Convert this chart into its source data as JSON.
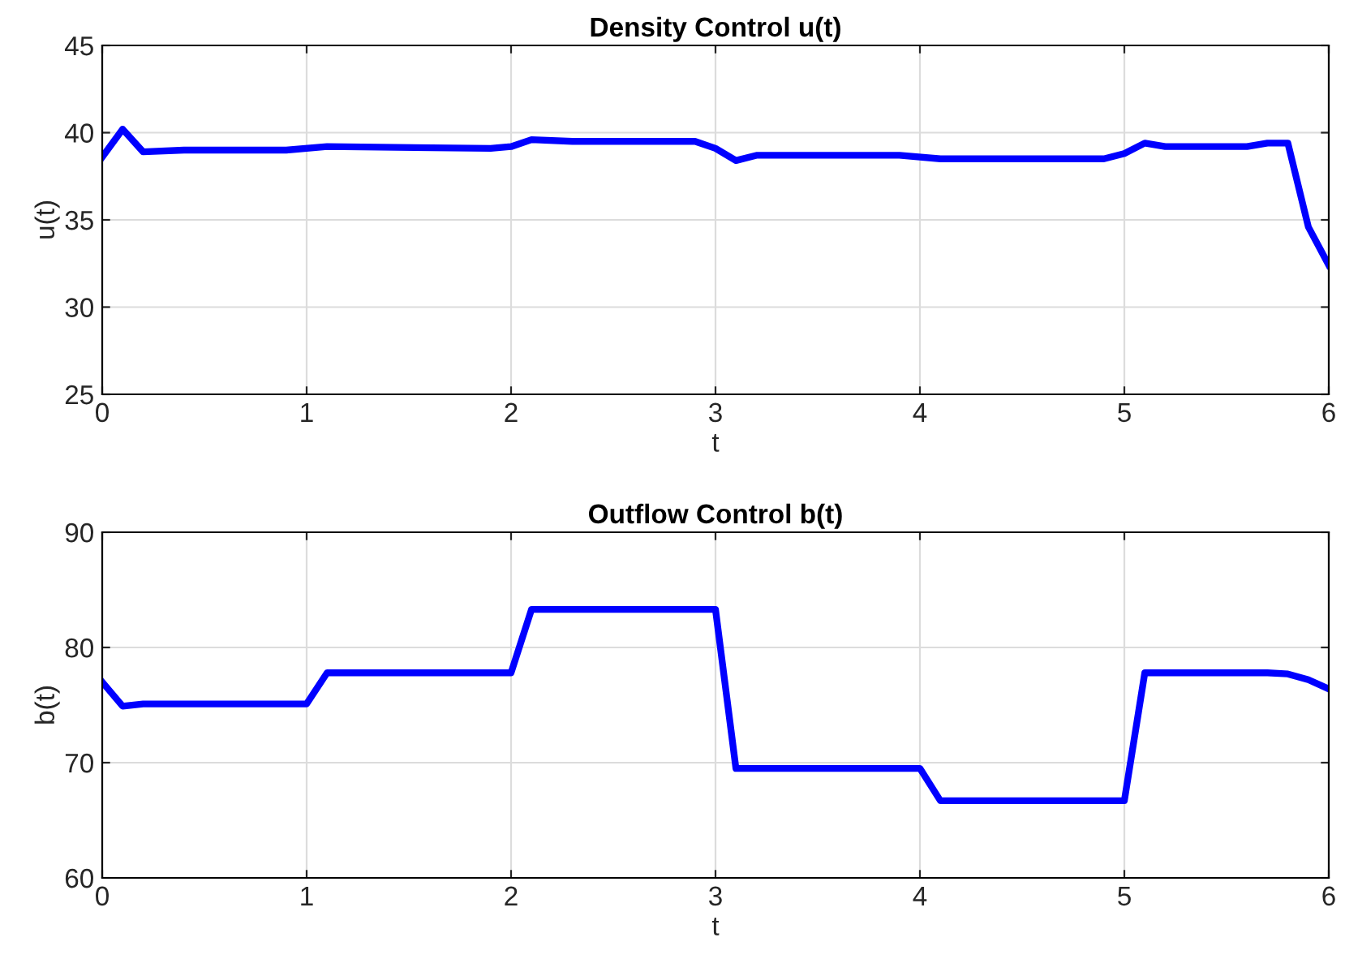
{
  "chart_data": [
    {
      "type": "line",
      "title": "Density Control u(t)",
      "xlabel": "t",
      "ylabel": "u(t)",
      "xlim": [
        0,
        6
      ],
      "xticks": [
        0,
        1,
        2,
        3,
        4,
        5,
        6
      ],
      "ylim": [
        25,
        45
      ],
      "yticks": [
        25,
        30,
        35,
        40,
        45
      ],
      "grid": true,
      "legend": false,
      "series": [
        {
          "color": "#0000ff",
          "x": [
            0,
            0.1,
            0.2,
            0.4,
            0.9,
            1.1,
            1.9,
            2.0,
            2.1,
            2.3,
            2.9,
            3.0,
            3.1,
            3.2,
            3.9,
            4.1,
            4.9,
            5.0,
            5.1,
            5.2,
            5.6,
            5.7,
            5.8,
            5.9,
            6.0
          ],
          "values": [
            38.6,
            40.2,
            38.9,
            39.0,
            39.0,
            39.2,
            39.1,
            39.2,
            39.6,
            39.5,
            39.5,
            39.1,
            38.4,
            38.7,
            38.7,
            38.5,
            38.5,
            38.8,
            39.4,
            39.2,
            39.2,
            39.4,
            39.4,
            34.6,
            32.4
          ]
        }
      ]
    },
    {
      "type": "line",
      "title": "Outflow Control b(t)",
      "xlabel": "t",
      "ylabel": "b(t)",
      "xlim": [
        0,
        6
      ],
      "xticks": [
        0,
        1,
        2,
        3,
        4,
        5,
        6
      ],
      "ylim": [
        60,
        90
      ],
      "yticks": [
        60,
        70,
        80,
        90
      ],
      "grid": true,
      "legend": false,
      "series": [
        {
          "color": "#0000ff",
          "x": [
            0,
            0.1,
            0.2,
            1.0,
            1.1,
            2.0,
            2.1,
            3.0,
            3.1,
            4.0,
            4.1,
            5.0,
            5.1,
            5.7,
            5.8,
            5.9,
            6.0
          ],
          "values": [
            77.0,
            74.9,
            75.1,
            75.1,
            77.8,
            77.8,
            83.3,
            83.3,
            69.5,
            69.5,
            66.7,
            66.7,
            77.8,
            77.8,
            77.7,
            77.2,
            76.4
          ]
        }
      ]
    }
  ]
}
